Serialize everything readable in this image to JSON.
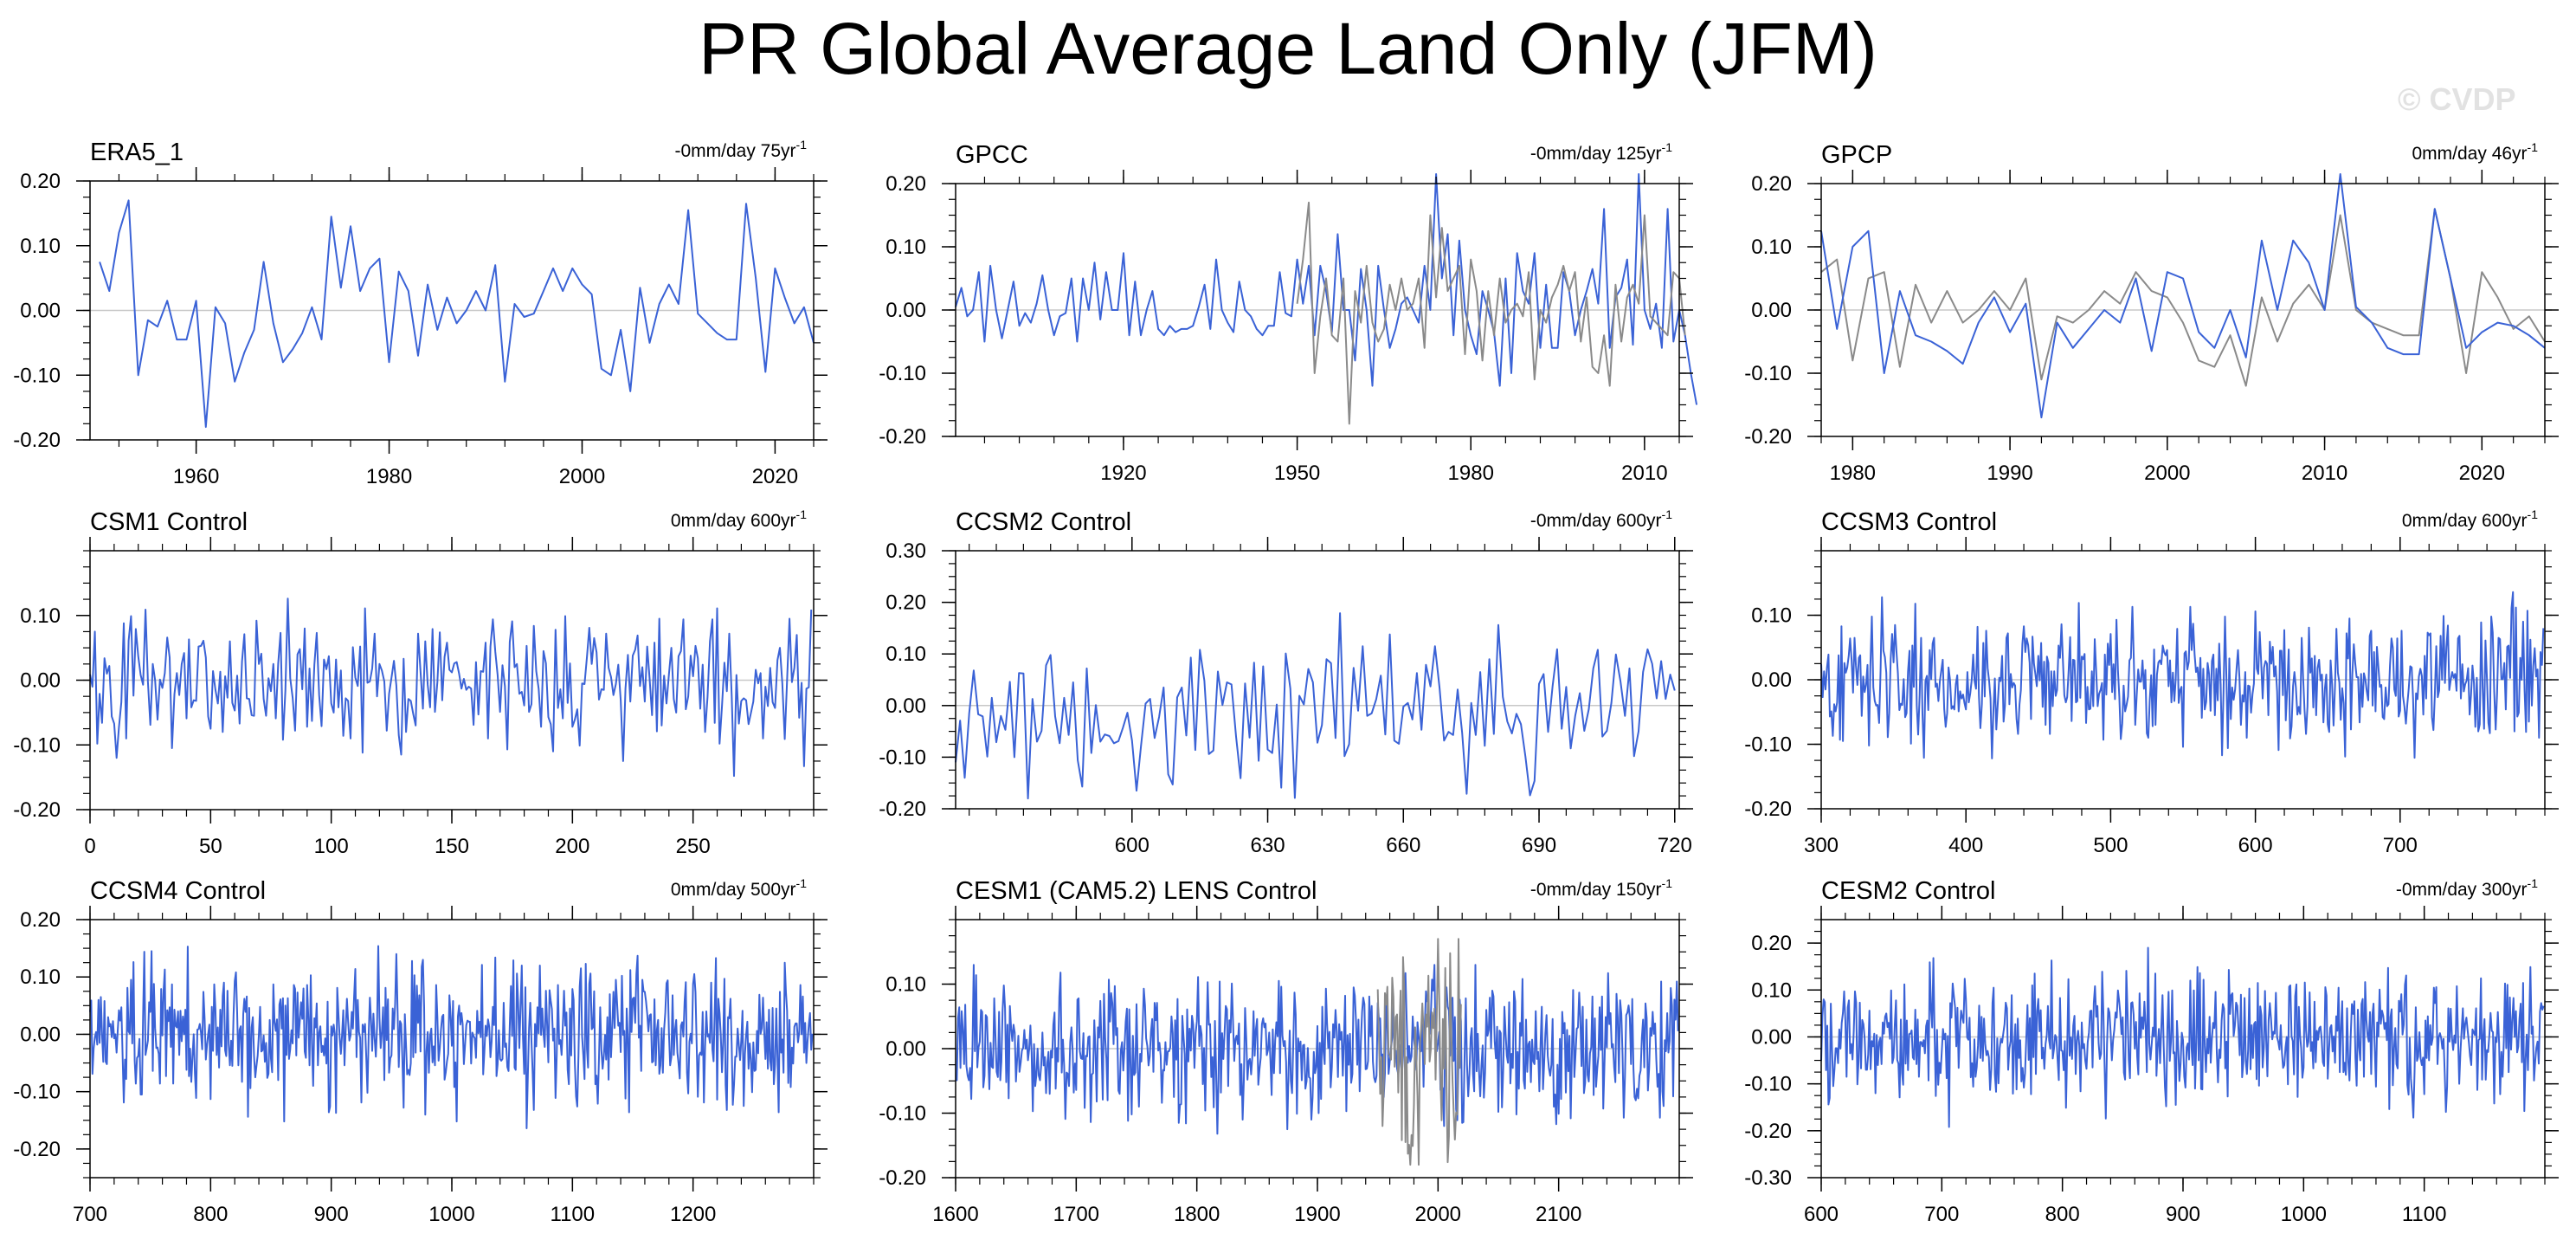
{
  "title": "PR Global Average Land Only (JFM)",
  "watermark": "© CVDP",
  "colors": {
    "model": "#3a62d6",
    "obs_overlay": "#8a8a8a",
    "zero_line": "#c8c8c8",
    "frame": "#000000"
  },
  "chart_data": [
    {
      "type": "line",
      "title": "ERA5_1",
      "annotation": "-0mm/day 75yr",
      "xlim": [
        1949,
        2024
      ],
      "ylim": [
        -0.2,
        0.2
      ],
      "xticks": [
        1960,
        1980,
        2000,
        2020
      ],
      "xtick_labels": [
        "1960",
        "1980",
        "2000",
        "2020"
      ],
      "yticks": [
        -0.2,
        -0.1,
        0,
        0.1,
        0.2
      ],
      "ytick_labels": [
        "-0.20",
        "-0.10",
        "0.00",
        "0.10",
        "0.20"
      ],
      "series": [
        {
          "color": "model",
          "x_start": 1950,
          "x_step": 1,
          "values": [
            0.075,
            0.03,
            0.12,
            0.17,
            -0.1,
            -0.015,
            -0.025,
            0.015,
            -0.045,
            -0.045,
            0.015,
            -0.18,
            0.005,
            -0.02,
            -0.11,
            -0.065,
            -0.03,
            0.075,
            -0.02,
            -0.08,
            -0.06,
            -0.035,
            0.005,
            -0.045,
            0.145,
            0.035,
            0.13,
            0.03,
            0.065,
            0.08,
            -0.08,
            0.06,
            0.03,
            -0.07,
            0.04,
            -0.03,
            0.02,
            -0.02,
            0.0,
            0.03,
            0.0,
            0.07,
            -0.11,
            0.01,
            -0.01,
            -0.005,
            0.03,
            0.065,
            0.03,
            0.065,
            0.04,
            0.025,
            -0.09,
            -0.1,
            -0.03,
            -0.125,
            0.035,
            -0.05,
            0.01,
            0.04,
            0.01,
            0.155,
            -0.005,
            -0.02,
            -0.035,
            -0.045,
            -0.045,
            0.165,
            0.05,
            -0.095,
            0.065,
            0.02,
            -0.02,
            0.005,
            -0.05
          ]
        }
      ]
    },
    {
      "type": "line",
      "title": "GPCC",
      "annotation": "-0mm/day 125yr",
      "xlim": [
        1891,
        2016
      ],
      "ylim": [
        -0.2,
        0.2
      ],
      "xticks": [
        1920,
        1950,
        1980,
        2010
      ],
      "xtick_labels": [
        "1920",
        "1950",
        "1980",
        "2010"
      ],
      "yticks": [
        -0.2,
        -0.1,
        0,
        0.1,
        0.2
      ],
      "ytick_labels": [
        "-0.20",
        "-0.10",
        "0.00",
        "0.10",
        "0.20"
      ],
      "series": [
        {
          "color": "model",
          "x_start": 1891,
          "x_step": 1,
          "values": [
            0.005,
            0.035,
            -0.01,
            0.0,
            0.06,
            -0.05,
            0.07,
            0.0,
            -0.045,
            0.0,
            0.045,
            -0.025,
            -0.005,
            -0.02,
            0.01,
            0.055,
            0.0,
            -0.04,
            -0.01,
            -0.005,
            0.05,
            -0.05,
            0.05,
            0.0,
            0.075,
            -0.015,
            0.06,
            0.0,
            0.0,
            0.09,
            -0.04,
            0.045,
            -0.04,
            0.0,
            0.03,
            -0.03,
            -0.04,
            -0.025,
            -0.035,
            -0.03,
            -0.03,
            -0.025,
            0.005,
            0.04,
            -0.03,
            0.08,
            0.0,
            -0.02,
            -0.035,
            0.045,
            0.0,
            -0.01,
            -0.03,
            -0.04,
            -0.025,
            -0.025,
            0.06,
            -0.005,
            -0.01,
            0.08,
            0.01,
            0.07,
            -0.04,
            0.07,
            0.03,
            -0.035,
            0.12,
            0.0,
            0.0,
            -0.08,
            0.065,
            0.0,
            -0.12,
            0.07,
            0.0,
            -0.06,
            -0.03,
            0.01,
            0.02,
            0.0,
            -0.02,
            0.07,
            0.0,
            0.215,
            0.05,
            0.12,
            -0.04,
            0.11,
            0.0,
            -0.04,
            -0.07,
            0.03,
            0.0,
            -0.035,
            -0.12,
            0.05,
            -0.1,
            0.09,
            0.03,
            0.01,
            0.09,
            -0.06,
            0.04,
            -0.06,
            -0.06,
            0.06,
            0.03,
            -0.04,
            0.0,
            0.03,
            0.065,
            0.01,
            0.16,
            -0.06,
            0.02,
            0.035,
            0.08,
            -0.055,
            0.215,
            0.0,
            -0.03,
            0.01,
            -0.06,
            0.16,
            -0.05,
            0.0,
            -0.04,
            -0.1,
            -0.15
          ]
        },
        {
          "color": "obs_overlay",
          "x_start": 1950,
          "x_step": 1,
          "values": [
            0.01,
            0.08,
            0.17,
            -0.1,
            -0.01,
            0.05,
            -0.04,
            -0.05,
            0.05,
            -0.18,
            0.03,
            -0.02,
            0.07,
            -0.02,
            -0.05,
            -0.03,
            0.04,
            0.0,
            0.05,
            0.0,
            0.01,
            0.05,
            -0.06,
            0.15,
            0.02,
            0.13,
            0.03,
            0.05,
            0.07,
            -0.07,
            0.08,
            0.03,
            -0.08,
            0.03,
            -0.04,
            0.05,
            -0.02,
            0.0,
            0.01,
            -0.01,
            0.06,
            -0.11,
            0.0,
            -0.02,
            0.02,
            0.04,
            0.07,
            0.03,
            0.06,
            -0.05,
            0.02,
            -0.09,
            -0.1,
            -0.04,
            -0.12,
            0.04,
            -0.05,
            0.02,
            0.04,
            0.01,
            0.15,
            -0.01,
            -0.02,
            -0.03,
            -0.04,
            0.06,
            0.05,
            -0.04
          ]
        }
      ]
    },
    {
      "type": "line",
      "title": "GPCP",
      "annotation": "0mm/day 46yr",
      "xlim": [
        1978,
        2024
      ],
      "ylim": [
        -0.2,
        0.2
      ],
      "xticks": [
        1980,
        1990,
        2000,
        2010,
        2020
      ],
      "xtick_labels": [
        "1980",
        "1990",
        "2000",
        "2010",
        "2020"
      ],
      "yticks": [
        -0.2,
        -0.1,
        0,
        0.1,
        0.2
      ],
      "ytick_labels": [
        "-0.20",
        "-0.10",
        "0.00",
        "0.10",
        "0.20"
      ],
      "series": [
        {
          "color": "obs_overlay",
          "x_start": 1978,
          "x_step": 1,
          "values": [
            0.06,
            0.08,
            -0.08,
            0.05,
            0.06,
            -0.09,
            0.04,
            -0.02,
            0.03,
            -0.02,
            0.0,
            0.03,
            0.0,
            0.05,
            -0.11,
            -0.01,
            -0.02,
            0.0,
            0.03,
            0.01,
            0.06,
            0.03,
            0.02,
            -0.02,
            -0.08,
            -0.09,
            -0.04,
            -0.12,
            0.02,
            -0.05,
            0.01,
            0.04,
            0.0,
            0.15,
            0.0,
            -0.02,
            -0.03,
            -0.04,
            -0.04,
            0.16,
            0.05,
            -0.1,
            0.06,
            0.02,
            -0.03,
            -0.01,
            -0.05
          ]
        },
        {
          "color": "model",
          "x_start": 1978,
          "x_step": 1,
          "values": [
            0.125,
            -0.03,
            0.1,
            0.125,
            -0.1,
            0.03,
            -0.04,
            -0.05,
            -0.065,
            -0.085,
            -0.02,
            0.02,
            -0.035,
            0.01,
            -0.17,
            -0.02,
            -0.06,
            -0.03,
            0.0,
            -0.02,
            0.05,
            -0.065,
            0.06,
            0.05,
            -0.035,
            -0.06,
            0.0,
            -0.075,
            0.11,
            0.0,
            0.11,
            0.075,
            0.0,
            0.215,
            0.005,
            -0.02,
            -0.06,
            -0.07,
            -0.07,
            0.16,
            0.05,
            -0.06,
            -0.035,
            -0.02,
            -0.025,
            -0.04,
            -0.06
          ]
        }
      ]
    },
    {
      "type": "line",
      "title": "CSM1 Control",
      "annotation": "0mm/day 600yr",
      "xlim": [
        0,
        300
      ],
      "ylim": [
        -0.2,
        0.2
      ],
      "xticks": [
        0,
        50,
        100,
        150,
        200,
        250
      ],
      "xtick_labels": [
        "0",
        "50",
        "100",
        "150",
        "200",
        "250"
      ],
      "yticks": [
        -0.2,
        -0.1,
        0,
        0.1
      ],
      "ytick_labels": [
        "-0.20",
        "-0.10",
        "0.00",
        "0.10"
      ],
      "series": [
        {
          "color": "model",
          "x_start": 0,
          "x_step": 1,
          "noise": {
            "seed": 101,
            "n": 300,
            "amp": 0.055,
            "clip": [
              -0.17,
              0.155
            ]
          }
        }
      ]
    },
    {
      "type": "line",
      "title": "CCSM2 Control",
      "annotation": "-0mm/day 600yr",
      "xlim": [
        561,
        721
      ],
      "ylim": [
        -0.2,
        0.3
      ],
      "xticks": [
        600,
        630,
        660,
        690,
        720
      ],
      "xtick_labels": [
        "600",
        "630",
        "660",
        "690",
        "720"
      ],
      "yticks": [
        -0.2,
        -0.1,
        0,
        0.1,
        0.2,
        0.3
      ],
      "ytick_labels": [
        "-0.20",
        "-0.10",
        "0.00",
        "0.10",
        "0.20",
        "0.30"
      ],
      "series": [
        {
          "color": "model",
          "x_start": 561,
          "x_step": 1,
          "noise": {
            "seed": 202,
            "n": 160,
            "amp": 0.08,
            "clip": [
              -0.18,
              0.275
            ]
          }
        }
      ]
    },
    {
      "type": "line",
      "title": "CCSM3 Control",
      "annotation": "0mm/day 600yr",
      "xlim": [
        300,
        800
      ],
      "ylim": [
        -0.2,
        0.2
      ],
      "xticks": [
        300,
        400,
        500,
        600,
        700
      ],
      "xtick_labels": [
        "300",
        "400",
        "500",
        "600",
        "700"
      ],
      "yticks": [
        -0.2,
        -0.1,
        0,
        0.1
      ],
      "ytick_labels": [
        "-0.20",
        "-0.10",
        "0.00",
        "0.10"
      ],
      "series": [
        {
          "color": "model",
          "x_start": 300,
          "x_step": 1,
          "noise": {
            "seed": 303,
            "n": 500,
            "amp": 0.05,
            "clip": [
              -0.15,
              0.16
            ]
          }
        }
      ]
    },
    {
      "type": "line",
      "title": "CCSM4 Control",
      "annotation": "0mm/day 500yr",
      "xlim": [
        700,
        1300
      ],
      "ylim": [
        -0.25,
        0.2
      ],
      "xticks": [
        700,
        800,
        900,
        1000,
        1100,
        1200
      ],
      "xtick_labels": [
        "700",
        "800",
        "900",
        "1000",
        "1100",
        "1200"
      ],
      "yticks": [
        -0.2,
        -0.1,
        0,
        0.1,
        0.2
      ],
      "ytick_labels": [
        "-0.20",
        "-0.10",
        "0.00",
        "0.10",
        "0.20"
      ],
      "series": [
        {
          "color": "model",
          "x_start": 700,
          "x_step": 1,
          "noise": {
            "seed": 404,
            "n": 600,
            "amp": 0.06,
            "clip": [
              -0.22,
              0.16
            ]
          }
        }
      ]
    },
    {
      "type": "line",
      "title": "CESM1 (CAM5.2) LENS Control",
      "annotation": "-0mm/day 150yr",
      "xlim": [
        1600,
        2200
      ],
      "ylim": [
        -0.2,
        0.2
      ],
      "xticks": [
        1600,
        1700,
        1800,
        1900,
        2000,
        2100
      ],
      "xtick_labels": [
        "1600",
        "1700",
        "1800",
        "1900",
        "2000",
        "2100"
      ],
      "yticks": [
        -0.2,
        -0.1,
        0,
        0.1
      ],
      "ytick_labels": [
        "-0.20",
        "-0.10",
        "0.00",
        "0.10"
      ],
      "series": [
        {
          "color": "model",
          "x_start": 1600,
          "x_step": 1,
          "noise": {
            "seed": 505,
            "n": 600,
            "amp": 0.055,
            "clip": [
              -0.16,
              0.13
            ]
          }
        },
        {
          "color": "obs_overlay",
          "x_start": 1950,
          "x_step": 1,
          "noise": {
            "seed": 515,
            "n": 70,
            "amp": 0.09,
            "clip": [
              -0.18,
              0.17
            ]
          }
        }
      ]
    },
    {
      "type": "line",
      "title": "CESM2 Control",
      "annotation": "-0mm/day 300yr",
      "xlim": [
        600,
        1200
      ],
      "ylim": [
        -0.3,
        0.25
      ],
      "xticks": [
        600,
        700,
        800,
        900,
        1000,
        1100
      ],
      "xtick_labels": [
        "600",
        "700",
        "800",
        "900",
        "1000",
        "1100"
      ],
      "yticks": [
        -0.3,
        -0.2,
        -0.1,
        0,
        0.1,
        0.2
      ],
      "ytick_labels": [
        "-0.30",
        "-0.20",
        "-0.10",
        "0.00",
        "0.10",
        "0.20"
      ],
      "series": [
        {
          "color": "model",
          "x_start": 600,
          "x_step": 1,
          "noise": {
            "seed": 606,
            "n": 600,
            "amp": 0.07,
            "clip": [
              -0.28,
              0.2
            ]
          }
        }
      ]
    }
  ]
}
